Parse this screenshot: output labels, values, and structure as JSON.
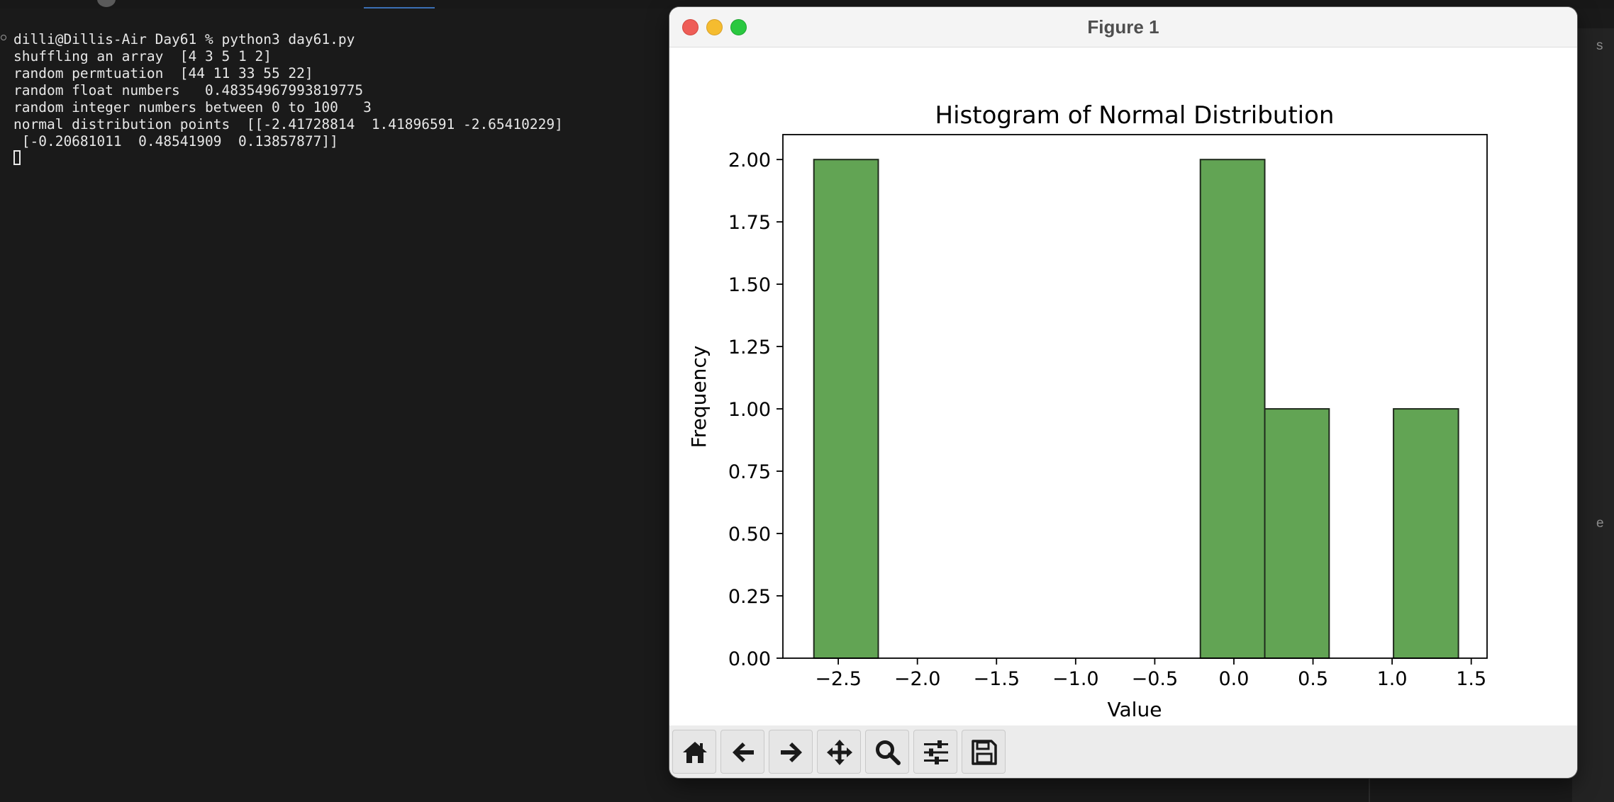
{
  "terminal": {
    "lines": [
      "dilli@Dillis-Air Day61 % python3 day61.py",
      "shuffling an array  [4 3 5 1 2]",
      "random permtuation  [44 11 33 55 22]",
      "random float numbers   0.48354967993819775",
      "random integer numbers between 0 to 100   3",
      "normal distribution points  [[-2.41728814  1.41896591 -2.65410229]",
      " [-0.20681011  0.48541909  0.13857877]]"
    ]
  },
  "right_panel": {
    "stub_top": "s",
    "stub_bottom": "e"
  },
  "window": {
    "title": "Figure 1"
  },
  "toolbar": {
    "buttons": [
      {
        "name": "home-button",
        "icon": "home-icon"
      },
      {
        "name": "back-button",
        "icon": "arrow-left-icon"
      },
      {
        "name": "forward-button",
        "icon": "arrow-right-icon"
      },
      {
        "name": "pan-button",
        "icon": "move-icon"
      },
      {
        "name": "zoom-button",
        "icon": "magnifier-icon"
      },
      {
        "name": "configure-subplots-button",
        "icon": "sliders-icon"
      },
      {
        "name": "save-button",
        "icon": "floppy-disk-icon"
      }
    ]
  },
  "colors": {
    "bar_fill": "#62a454",
    "bar_edge": "#1f2a1c",
    "close": "#ee5d57",
    "minimize": "#f5bc2f",
    "maximize": "#2ac840"
  },
  "chart_data": {
    "type": "bar",
    "title": "Histogram of Normal Distribution",
    "xlabel": "Value",
    "ylabel": "Frequency",
    "xlim": [
      -2.85,
      1.6
    ],
    "ylim": [
      0,
      2.1
    ],
    "xticks": [
      "−2.5",
      "−2.0",
      "−1.5",
      "−1.0",
      "−0.5",
      "0.0",
      "0.5",
      "1.0",
      "1.5"
    ],
    "xtick_values": [
      -2.5,
      -2.0,
      -1.5,
      -1.0,
      -0.5,
      0.0,
      0.5,
      1.0,
      1.5
    ],
    "yticks": [
      "0.00",
      "0.25",
      "0.50",
      "0.75",
      "1.00",
      "1.25",
      "1.50",
      "1.75",
      "2.00"
    ],
    "ytick_values": [
      0,
      0.25,
      0.5,
      0.75,
      1.0,
      1.25,
      1.5,
      1.75,
      2.0
    ],
    "bins": [
      {
        "x0": -2.654,
        "x1": -2.247,
        "count": 2
      },
      {
        "x0": -2.247,
        "x1": -1.84,
        "count": 0
      },
      {
        "x0": -1.84,
        "x1": -1.433,
        "count": 0
      },
      {
        "x0": -1.433,
        "x1": -1.026,
        "count": 0
      },
      {
        "x0": -1.026,
        "x1": -0.619,
        "count": 0
      },
      {
        "x0": -0.619,
        "x1": -0.212,
        "count": 0
      },
      {
        "x0": -0.212,
        "x1": 0.195,
        "count": 2
      },
      {
        "x0": 0.195,
        "x1": 0.602,
        "count": 1
      },
      {
        "x0": 0.602,
        "x1": 1.009,
        "count": 0
      },
      {
        "x0": 1.009,
        "x1": 1.419,
        "count": 1
      }
    ],
    "grid": false,
    "legend": "none"
  }
}
